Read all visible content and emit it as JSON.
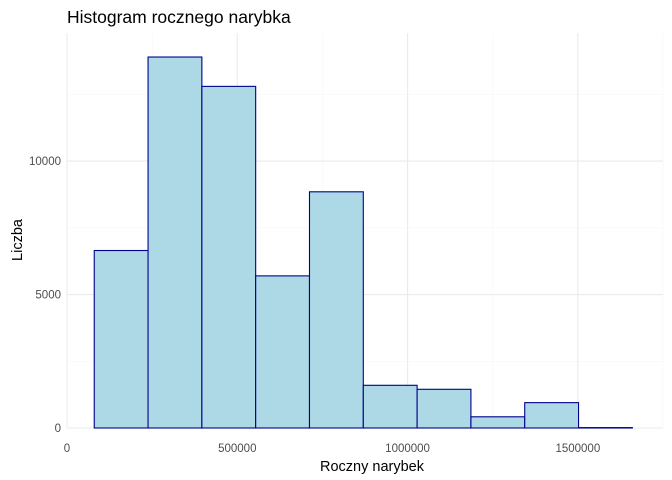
{
  "chart_data": {
    "type": "bar",
    "title": "Histogram rocznego narybka",
    "xlabel": "Roczny narybek",
    "ylabel": "Liczba",
    "xlim": [
      0,
      1750000
    ],
    "ylim": [
      0,
      14800
    ],
    "x_ticks": [
      0,
      500000,
      1000000,
      1500000
    ],
    "x_tick_labels": [
      "0",
      "500000",
      "1000000",
      "1500000"
    ],
    "y_ticks": [
      0,
      5000,
      10000
    ],
    "y_tick_labels": [
      "0",
      "5000",
      "10000"
    ],
    "grid": true,
    "bins": [
      {
        "start": 80000,
        "end": 238000,
        "count": 6650
      },
      {
        "start": 238000,
        "end": 396000,
        "count": 13900
      },
      {
        "start": 396000,
        "end": 554000,
        "count": 12800
      },
      {
        "start": 554000,
        "end": 712000,
        "count": 5700
      },
      {
        "start": 712000,
        "end": 870000,
        "count": 8850
      },
      {
        "start": 870000,
        "end": 1028000,
        "count": 1600
      },
      {
        "start": 1028000,
        "end": 1186000,
        "count": 1450
      },
      {
        "start": 1186000,
        "end": 1344000,
        "count": 420
      },
      {
        "start": 1344000,
        "end": 1502000,
        "count": 950
      },
      {
        "start": 1502000,
        "end": 1660000,
        "count": 15
      }
    ],
    "colors": {
      "fill": "#add8e6",
      "stroke": "#00008b"
    }
  }
}
